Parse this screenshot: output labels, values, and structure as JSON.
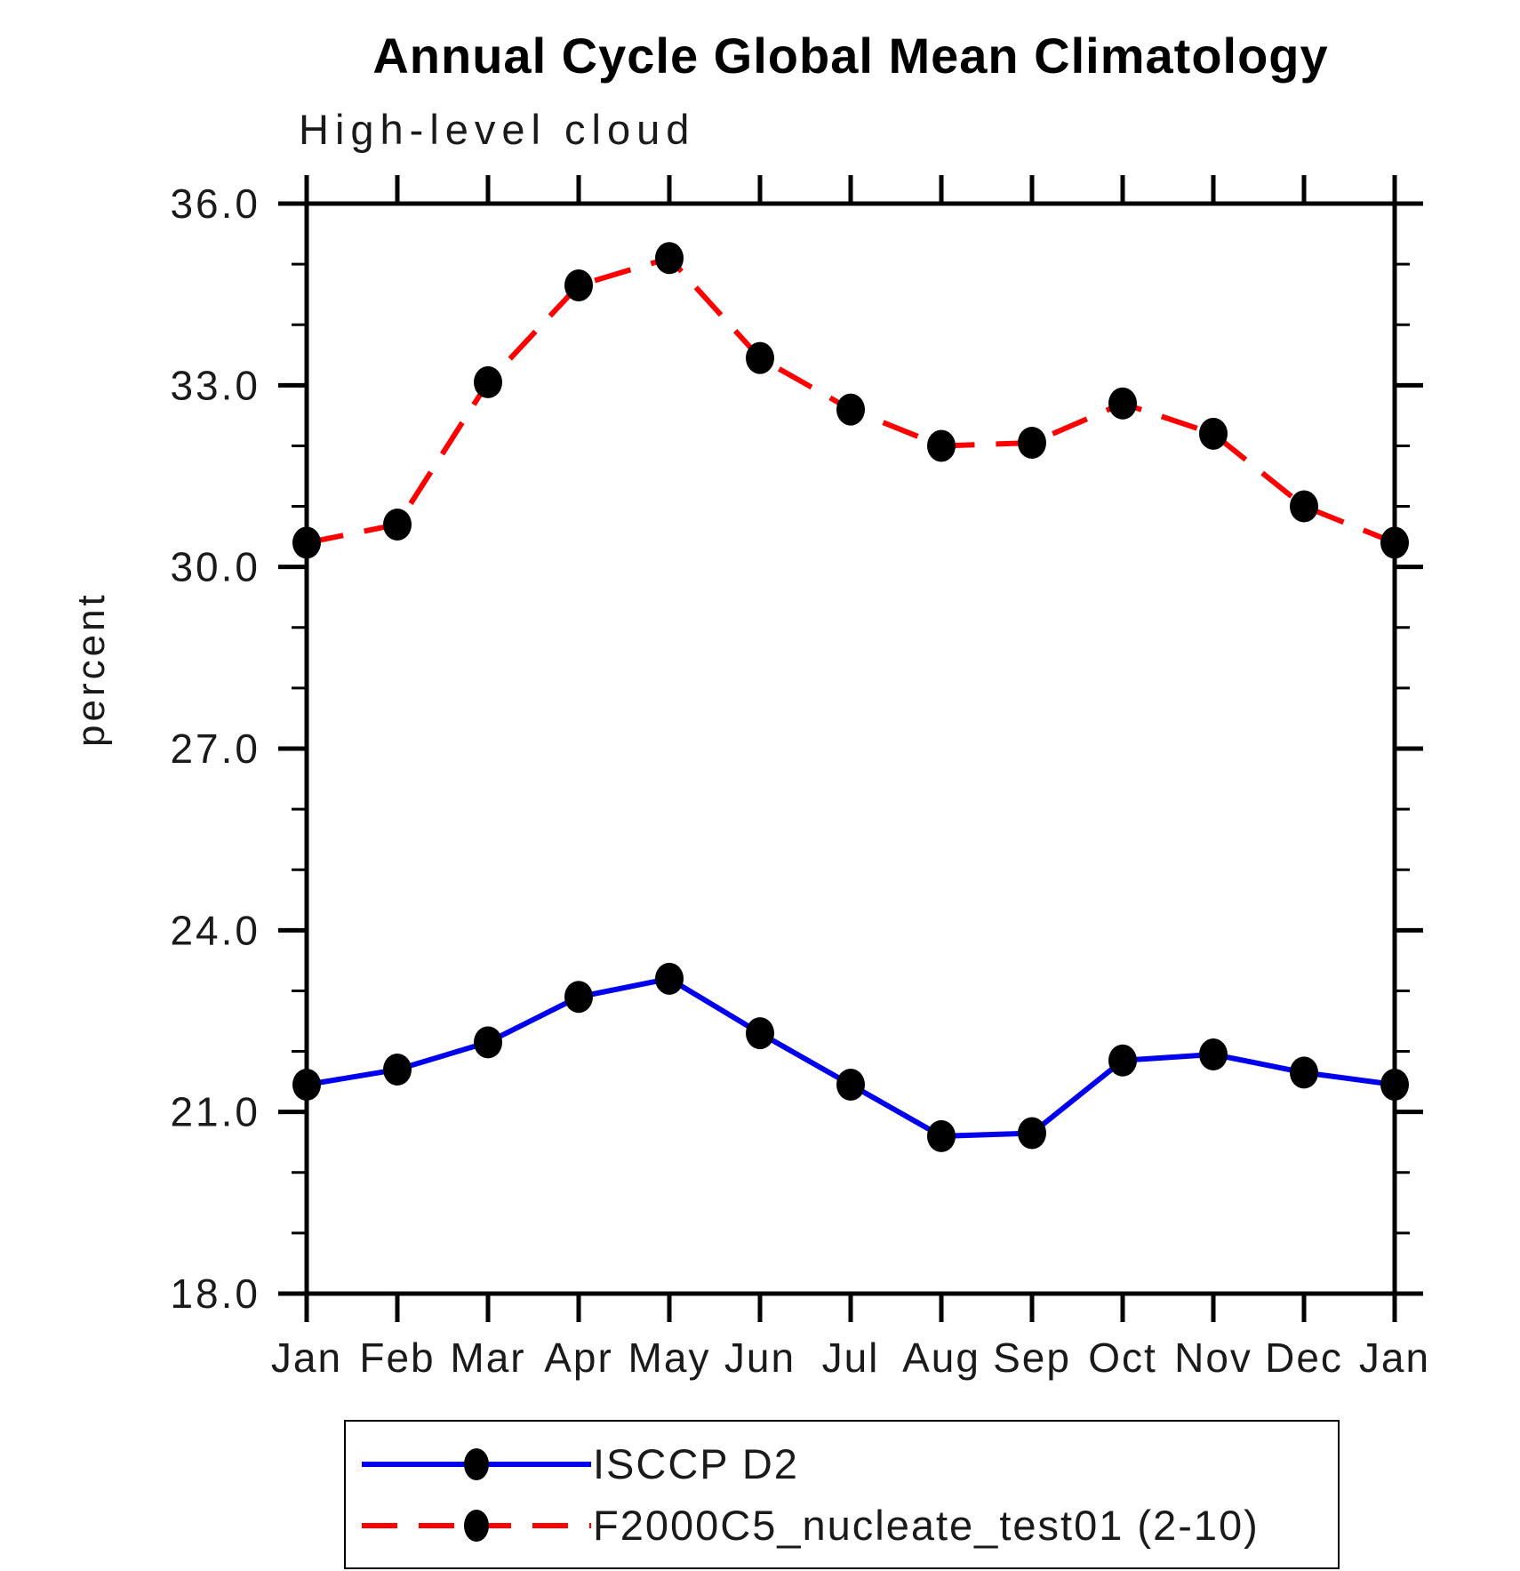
{
  "figure": {
    "title": "Annual Cycle Global Mean Climatology",
    "subtitle": "High-level cloud",
    "ylabel": "percent"
  },
  "legend": {
    "position": "bottom",
    "entries": [
      {
        "label": "ISCCP D2",
        "line_color": "#0000ee",
        "line_style": "solid",
        "marker": "filled-circle",
        "marker_color": "#000000"
      },
      {
        "label": "F2000C5_nucleate_test01 (2-10)",
        "line_color": "#ff0000",
        "line_style": "dashed",
        "marker": "filled-circle",
        "marker_color": "#000000"
      }
    ]
  },
  "chart_data": {
    "type": "line",
    "title": "Annual Cycle Global Mean Climatology",
    "subtitle": "High-level cloud",
    "xlabel": "",
    "ylabel": "percent",
    "categories": [
      "Jan",
      "Feb",
      "Mar",
      "Apr",
      "May",
      "Jun",
      "Jul",
      "Aug",
      "Sep",
      "Oct",
      "Nov",
      "Dec",
      "Jan"
    ],
    "ylim": [
      18.0,
      36.0
    ],
    "ytick_major_step": 3.0,
    "ytick_minor_step": 1.0,
    "ytick_labels": [
      "18.0",
      "21.0",
      "24.0",
      "27.0",
      "30.0",
      "33.0",
      "36.0"
    ],
    "grid": false,
    "legend_position": "bottom",
    "series": [
      {
        "name": "ISCCP D2",
        "color": "#0000ee",
        "line_style": "solid",
        "marker": "filled-circle",
        "marker_color": "#000000",
        "values": [
          21.45,
          21.7,
          22.15,
          22.9,
          23.2,
          22.3,
          21.45,
          20.6,
          20.65,
          21.85,
          21.95,
          21.65,
          21.45
        ]
      },
      {
        "name": "F2000C5_nucleate_test01 (2-10)",
        "color": "#ff0000",
        "line_style": "dashed",
        "marker": "filled-circle",
        "marker_color": "#000000",
        "values": [
          30.4,
          30.7,
          33.05,
          34.65,
          35.1,
          33.45,
          32.6,
          32.0,
          32.05,
          32.7,
          32.2,
          31.0,
          30.4
        ]
      }
    ]
  }
}
